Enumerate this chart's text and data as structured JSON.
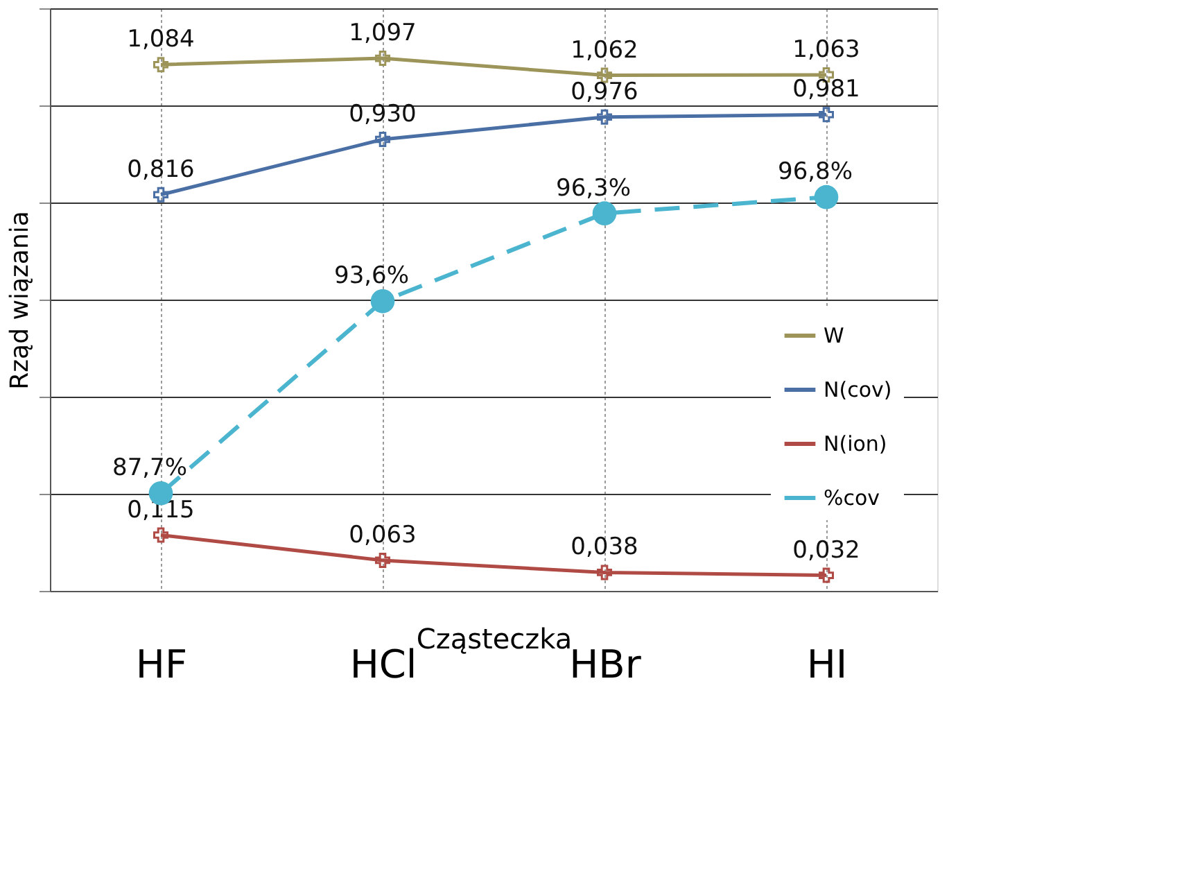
{
  "chart_data": {
    "type": "line",
    "xlabel": "Cząsteczka",
    "ylabel": "Rząd wiązania",
    "categories": [
      "HF",
      "HCl",
      "HBr",
      "HI"
    ],
    "ylim": [
      0,
      1.2
    ],
    "yticks": [
      {
        "value": 0,
        "label": null
      },
      {
        "value": 0.2,
        "label": null
      },
      {
        "value": 0.4,
        "label": null
      },
      {
        "value": 0.6,
        "label": null
      },
      {
        "value": 0.8,
        "label": null
      },
      {
        "value": 1.0,
        "label": null
      },
      {
        "value": 1.2,
        "label": null
      }
    ],
    "y2lim": [
      84.7,
      102.6
    ],
    "tick_labels": "x",
    "grid": true,
    "legend": "right",
    "series": [
      {
        "name": "W",
        "color": "#9c9458",
        "marker": "cross",
        "line_style": "solid",
        "values": [
          1.084,
          1.097,
          1.062,
          1.063
        ],
        "value_labels": [
          "1,084",
          "1,097",
          "1,062",
          "1,063"
        ]
      },
      {
        "name": "N(cov)",
        "color": "#4a6fa5",
        "marker": "cross",
        "line_style": "solid",
        "values": [
          0.816,
          0.93,
          0.976,
          0.981
        ],
        "value_labels": [
          "0,816",
          "0,930",
          "0,976",
          "0,981"
        ]
      },
      {
        "name": "N(ion)",
        "color": "#b04a45",
        "marker": "cross",
        "line_style": "solid",
        "values": [
          0.115,
          0.063,
          0.038,
          0.032
        ],
        "value_labels": [
          "0,115",
          "0,063",
          "0,038",
          "0,032"
        ]
      },
      {
        "name": "%cov",
        "color": "#4bb5cf",
        "marker": "circle",
        "line_style": "dashed",
        "axis": "y2",
        "values": [
          87.7,
          93.6,
          96.3,
          96.8
        ],
        "value_labels": [
          "87,7%",
          "93,6%",
          "96,3%",
          "96,8%"
        ]
      }
    ]
  }
}
